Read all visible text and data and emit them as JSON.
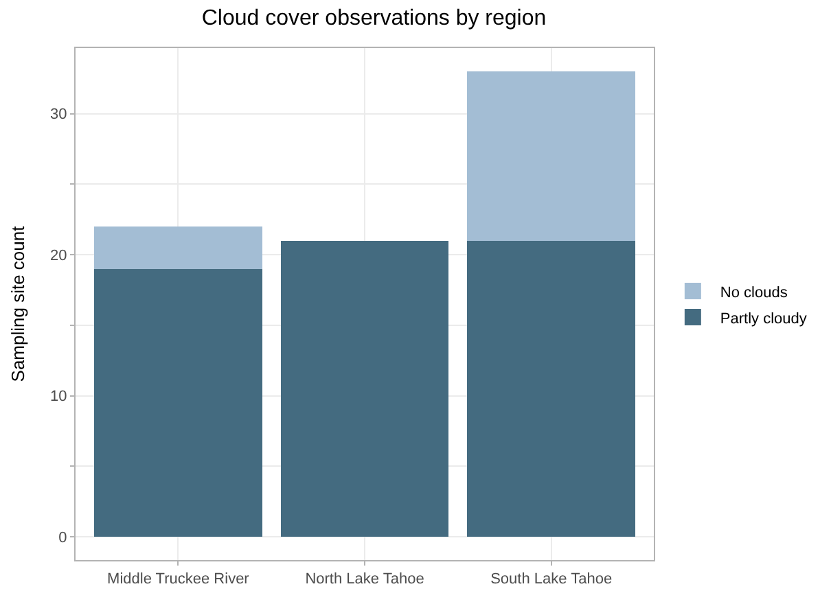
{
  "chart_data": {
    "type": "bar",
    "title": "Cloud cover observations by region",
    "ylabel": "Sampling site count",
    "categories": [
      "Middle Truckee River",
      "North Lake Tahoe",
      "South Lake Tahoe"
    ],
    "stacked": true,
    "series": [
      {
        "name": "Partly cloudy",
        "color": "#446b80",
        "values": [
          19,
          21,
          21
        ]
      },
      {
        "name": "No clouds",
        "color": "#a3bdd4",
        "values": [
          3,
          null,
          12
        ]
      }
    ],
    "ylim": [
      -1.65,
      34.65
    ],
    "yticks": [
      0,
      {
        "value": 5,
        "label": null
      },
      10,
      {
        "value": 15,
        "label": null
      },
      20,
      {
        "value": 25,
        "label": null
      },
      30
    ],
    "grid": true,
    "legend": "right"
  }
}
